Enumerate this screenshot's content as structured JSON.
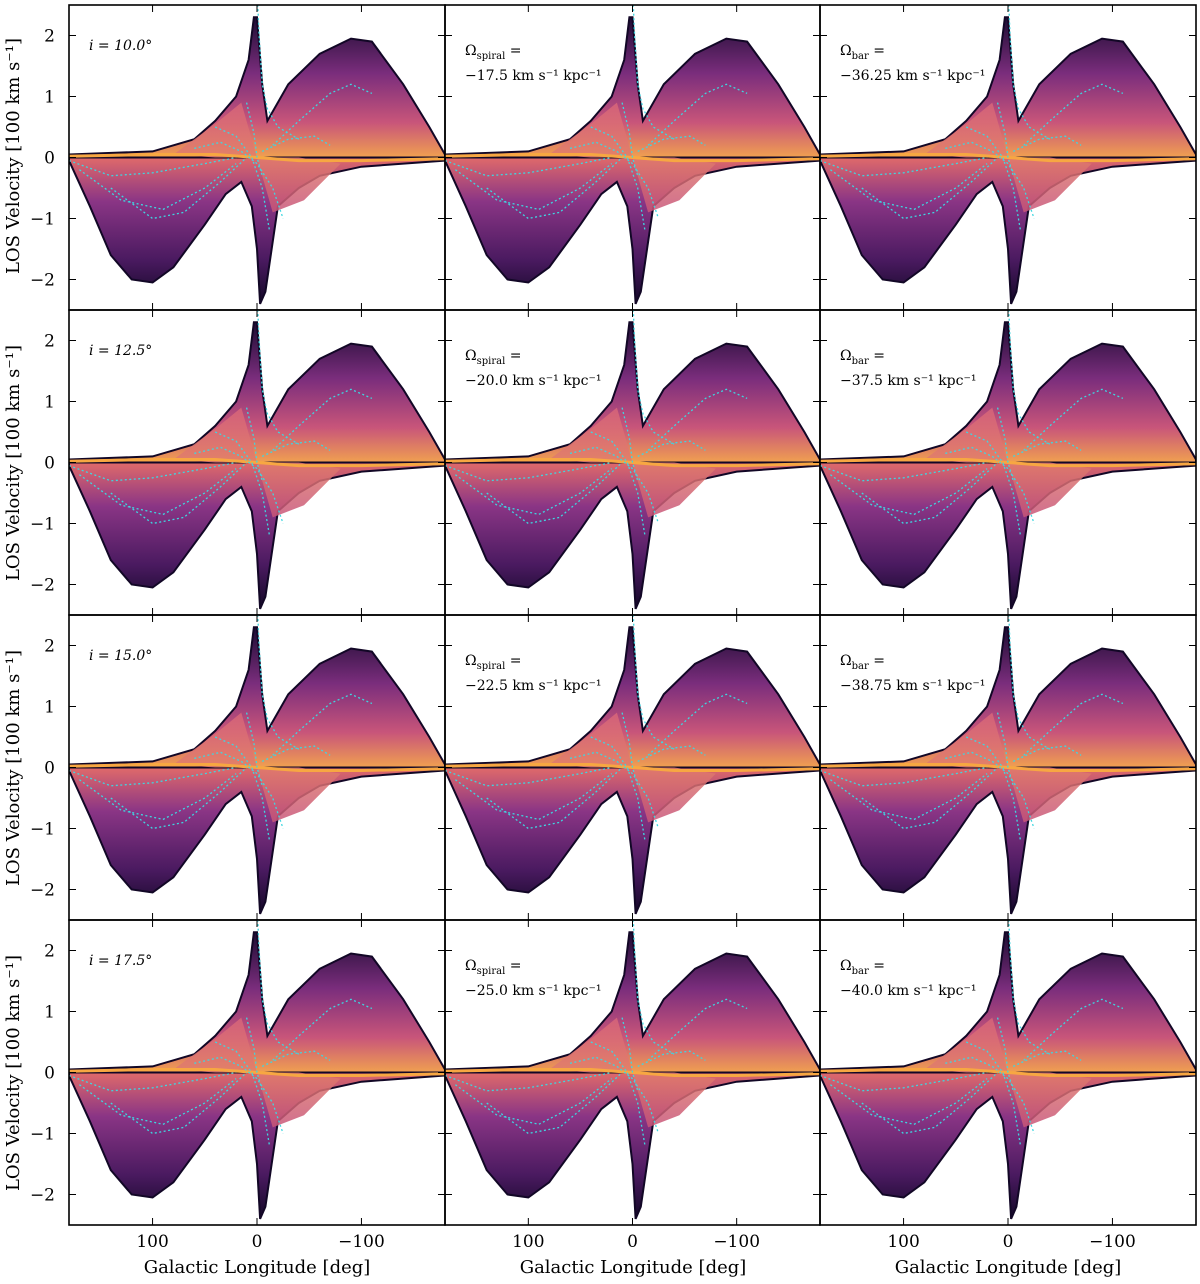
{
  "figure": {
    "ylabel": "LOS Velocity [100 km s⁻¹]",
    "xlabel": "Galactic Longitude [deg]"
  },
  "chart_data": {
    "type": "heatmap",
    "xlabel": "Galactic Longitude [deg]",
    "ylabel": "LOS Velocity [100 km s⁻¹]",
    "xlim": [
      180,
      -180
    ],
    "ylim": [
      -2.5,
      2.5
    ],
    "x_inverted": true,
    "xticks": [
      100,
      0,
      -100
    ],
    "xtick_labels": [
      "100",
      "0",
      "−100"
    ],
    "yticks": [
      2,
      1,
      0,
      -1,
      -2
    ],
    "ytick_labels": [
      "2",
      "1",
      "0",
      "−1",
      "−2"
    ],
    "grid": false,
    "colormap": "inferno",
    "colors": {
      "dark": "#1a0b2e",
      "mid": "#6b2a7a",
      "pink": "#c8557a",
      "orange": "#f5a040",
      "guide": "#3fd6e0"
    },
    "rows": [
      {
        "label": "i = 10.0°",
        "spiral_value": "−17.5 km s⁻¹ kpc⁻¹",
        "bar_value": "−36.25 km s⁻¹ kpc⁻¹"
      },
      {
        "label": "i = 12.5°",
        "spiral_value": "−20.0 km s⁻¹ kpc⁻¹",
        "bar_value": "−37.5 km s⁻¹ kpc⁻¹"
      },
      {
        "label": "i = 15.0°",
        "spiral_value": "−22.5 km s⁻¹ kpc⁻¹",
        "bar_value": "−38.75 km s⁻¹ kpc⁻¹"
      },
      {
        "label": "i = 17.5°",
        "spiral_value": "−25.0 km s⁻¹ kpc⁻¹",
        "bar_value": "−40.0 km s⁻¹ kpc⁻¹"
      }
    ],
    "spiral_symbol": "Ω",
    "spiral_sub": "spiral",
    "bar_symbol": "Ω",
    "bar_sub": "bar",
    "equals": "=",
    "envelope": {
      "upper_left": [
        [
          180,
          0.05
        ],
        [
          100,
          0.1
        ],
        [
          60,
          0.3
        ],
        [
          40,
          0.6
        ],
        [
          20,
          1.0
        ],
        [
          8,
          1.6
        ],
        [
          3,
          2.3
        ],
        [
          0,
          2.3
        ],
        [
          -5,
          1.2
        ],
        [
          -10,
          0.6
        ]
      ],
      "upper_right": [
        [
          -10,
          0.6
        ],
        [
          -30,
          1.2
        ],
        [
          -60,
          1.7
        ],
        [
          -90,
          1.95
        ],
        [
          -110,
          1.9
        ],
        [
          -140,
          1.2
        ],
        [
          -165,
          0.5
        ],
        [
          -180,
          0.05
        ]
      ],
      "lower_left": [
        [
          180,
          -0.05
        ],
        [
          160,
          -0.8
        ],
        [
          140,
          -1.6
        ],
        [
          120,
          -2.0
        ],
        [
          100,
          -2.05
        ],
        [
          80,
          -1.8
        ],
        [
          50,
          -1.1
        ],
        [
          30,
          -0.6
        ],
        [
          15,
          -0.4
        ],
        [
          5,
          -0.8
        ],
        [
          0,
          -1.5
        ],
        [
          -3,
          -2.4
        ],
        [
          -8,
          -2.2
        ]
      ],
      "lower_right": [
        [
          -8,
          -2.2
        ],
        [
          -20,
          -0.8
        ],
        [
          -40,
          -0.5
        ],
        [
          -60,
          -0.3
        ],
        [
          -100,
          -0.15
        ],
        [
          -180,
          -0.05
        ]
      ]
    },
    "guide_curves": [
      [
        [
          0,
          2.8
        ],
        [
          -2,
          2.0
        ],
        [
          -5,
          1.2
        ],
        [
          -10,
          0.8
        ],
        [
          -20,
          0.5
        ],
        [
          -40,
          0.3
        ]
      ],
      [
        [
          -15,
          0.2
        ],
        [
          -40,
          0.6
        ],
        [
          -70,
          1.05
        ],
        [
          -90,
          1.2
        ],
        [
          -110,
          1.05
        ]
      ],
      [
        [
          -5,
          0.1
        ],
        [
          -30,
          0.3
        ],
        [
          -55,
          0.35
        ],
        [
          -70,
          0.2
        ]
      ],
      [
        [
          180,
          -0.05
        ],
        [
          140,
          -0.3
        ],
        [
          100,
          -0.25
        ],
        [
          50,
          -0.1
        ],
        [
          20,
          0.0
        ]
      ],
      [
        [
          170,
          -0.2
        ],
        [
          130,
          -0.7
        ],
        [
          90,
          -0.85
        ],
        [
          50,
          -0.5
        ],
        [
          20,
          -0.1
        ]
      ],
      [
        [
          140,
          -0.5
        ],
        [
          100,
          -1.0
        ],
        [
          70,
          -0.9
        ],
        [
          35,
          -0.4
        ],
        [
          10,
          0.0
        ]
      ],
      [
        [
          60,
          0.15
        ],
        [
          35,
          0.25
        ],
        [
          15,
          0.1
        ],
        [
          0,
          -0.1
        ],
        [
          -15,
          -0.5
        ],
        [
          -25,
          -1.0
        ]
      ],
      [
        [
          40,
          0.5
        ],
        [
          20,
          0.35
        ],
        [
          5,
          0.0
        ],
        [
          -5,
          -0.5
        ],
        [
          -12,
          -1.2
        ]
      ],
      [
        [
          10,
          0.9
        ],
        [
          3,
          0.4
        ],
        [
          0,
          0.0
        ],
        [
          -5,
          -0.3
        ]
      ]
    ]
  }
}
